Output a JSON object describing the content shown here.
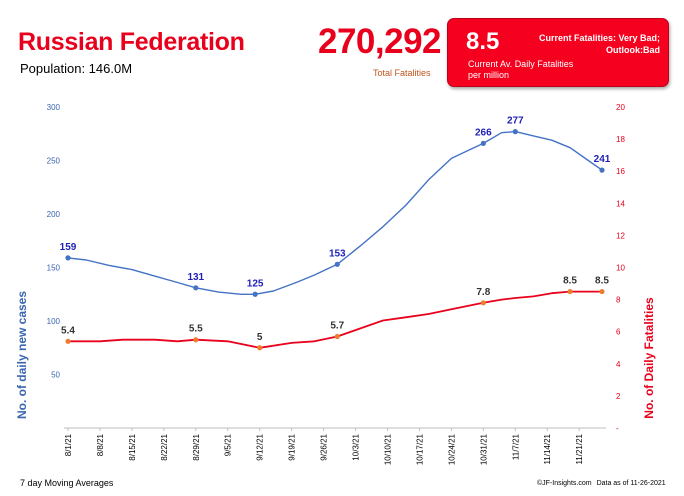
{
  "header": {
    "country": "Russian Federation",
    "population": "Population: 146.0M",
    "total_fatalities_value": "270,292",
    "total_fatalities_label": "Total Fatalities"
  },
  "kpi": {
    "value": "8.5",
    "label": "Current Av. Daily Fatalities per million",
    "status": "Current Fatalities: Very Bad; Outlook:Bad"
  },
  "footer": {
    "note": "7 day Moving Averages",
    "source": "©JF-Insights.com",
    "data_date": "Data as of 11-26-2021"
  },
  "colors": {
    "cases": "#4472c4",
    "fatalities": "#e8001c",
    "case_markers": "#4472c4",
    "fatality_markers": "#ed7d31"
  },
  "chart_data": {
    "type": "line",
    "title": "",
    "xlabel": "",
    "ylabel": "No. of daily new  cases",
    "y2label": "No. of Daily Fatalities",
    "ylim": [
      0,
      300
    ],
    "y2lim": [
      0,
      20
    ],
    "yticks": [
      "",
      "50",
      "100",
      "150",
      "200",
      "250",
      "300"
    ],
    "y2ticks": [
      "-",
      "2",
      "4",
      "6",
      "8",
      "10",
      "12",
      "14",
      "16",
      "18",
      "20"
    ],
    "x_tick_labels": [
      "8/1/21",
      "8/8/21",
      "8/15/21",
      "8/22/21",
      "8/29/21",
      "9/5/21",
      "9/12/21",
      "9/19/21",
      "9/26/21",
      "10/3/21",
      "10/10/21",
      "10/17/21",
      "10/24/21",
      "10/31/21",
      "11/7/21",
      "11/14/21",
      "11/21/21"
    ],
    "x_start": "8/1/21",
    "x_end": "11/26/21",
    "series": [
      {
        "name": "No. of daily new cases",
        "axis": "left",
        "x": [
          "8/1/21",
          "8/5/21",
          "8/10/21",
          "8/15/21",
          "8/20/21",
          "8/25/21",
          "8/29/21",
          "9/3/21",
          "9/8/21",
          "9/11/21",
          "9/15/21",
          "9/20/21",
          "9/24/21",
          "9/29/21",
          "10/4/21",
          "10/9/21",
          "10/14/21",
          "10/19/21",
          "10/24/21",
          "10/27/21",
          "10/31/21",
          "11/4/21",
          "11/7/21",
          "11/11/21",
          "11/15/21",
          "11/19/21",
          "11/23/21",
          "11/26/21"
        ],
        "values": [
          159,
          157,
          152,
          148,
          142,
          136,
          131,
          127,
          125,
          125,
          128,
          136,
          143,
          153,
          170,
          188,
          208,
          232,
          252,
          258,
          266,
          276,
          277,
          273,
          269,
          262,
          250,
          241
        ]
      },
      {
        "name": "No. of Daily Fatalities",
        "axis": "right",
        "x": [
          "8/1/21",
          "8/8/21",
          "8/13/21",
          "8/20/21",
          "8/25/21",
          "8/29/21",
          "9/5/21",
          "9/12/21",
          "9/19/21",
          "9/24/21",
          "9/29/21",
          "10/4/21",
          "10/9/21",
          "10/14/21",
          "10/19/21",
          "10/24/21",
          "10/31/21",
          "11/4/21",
          "11/7/21",
          "11/11/21",
          "11/15/21",
          "11/19/21",
          "11/23/21",
          "11/26/21"
        ],
        "values": [
          5.4,
          5.4,
          5.5,
          5.5,
          5.4,
          5.5,
          5.4,
          5.0,
          5.3,
          5.4,
          5.7,
          6.2,
          6.7,
          6.9,
          7.1,
          7.4,
          7.8,
          8.0,
          8.1,
          8.2,
          8.4,
          8.5,
          8.5,
          8.5
        ]
      }
    ],
    "annotations": [
      {
        "series": 0,
        "x": "8/1/21",
        "value": 159,
        "label": "159"
      },
      {
        "series": 0,
        "x": "8/29/21",
        "value": 131,
        "label": "131"
      },
      {
        "series": 0,
        "x": "9/11/21",
        "value": 125,
        "label": "125"
      },
      {
        "series": 0,
        "x": "9/29/21",
        "value": 153,
        "label": "153"
      },
      {
        "series": 0,
        "x": "10/31/21",
        "value": 266,
        "label": "266"
      },
      {
        "series": 0,
        "x": "11/7/21",
        "value": 277,
        "label": "277"
      },
      {
        "series": 0,
        "x": "11/26/21",
        "value": 241,
        "label": "241"
      },
      {
        "series": 1,
        "x": "8/1/21",
        "value": 5.4,
        "label": "5.4"
      },
      {
        "series": 1,
        "x": "8/29/21",
        "value": 5.5,
        "label": "5.5"
      },
      {
        "series": 1,
        "x": "9/12/21",
        "value": 5.0,
        "label": "5"
      },
      {
        "series": 1,
        "x": "9/29/21",
        "value": 5.7,
        "label": "5.7"
      },
      {
        "series": 1,
        "x": "10/31/21",
        "value": 7.8,
        "label": "7.8"
      },
      {
        "series": 1,
        "x": "11/19/21",
        "value": 8.5,
        "label": "8.5"
      },
      {
        "series": 1,
        "x": "11/26/21",
        "value": 8.5,
        "label": "8.5"
      }
    ],
    "grid": false,
    "legend": "none"
  }
}
